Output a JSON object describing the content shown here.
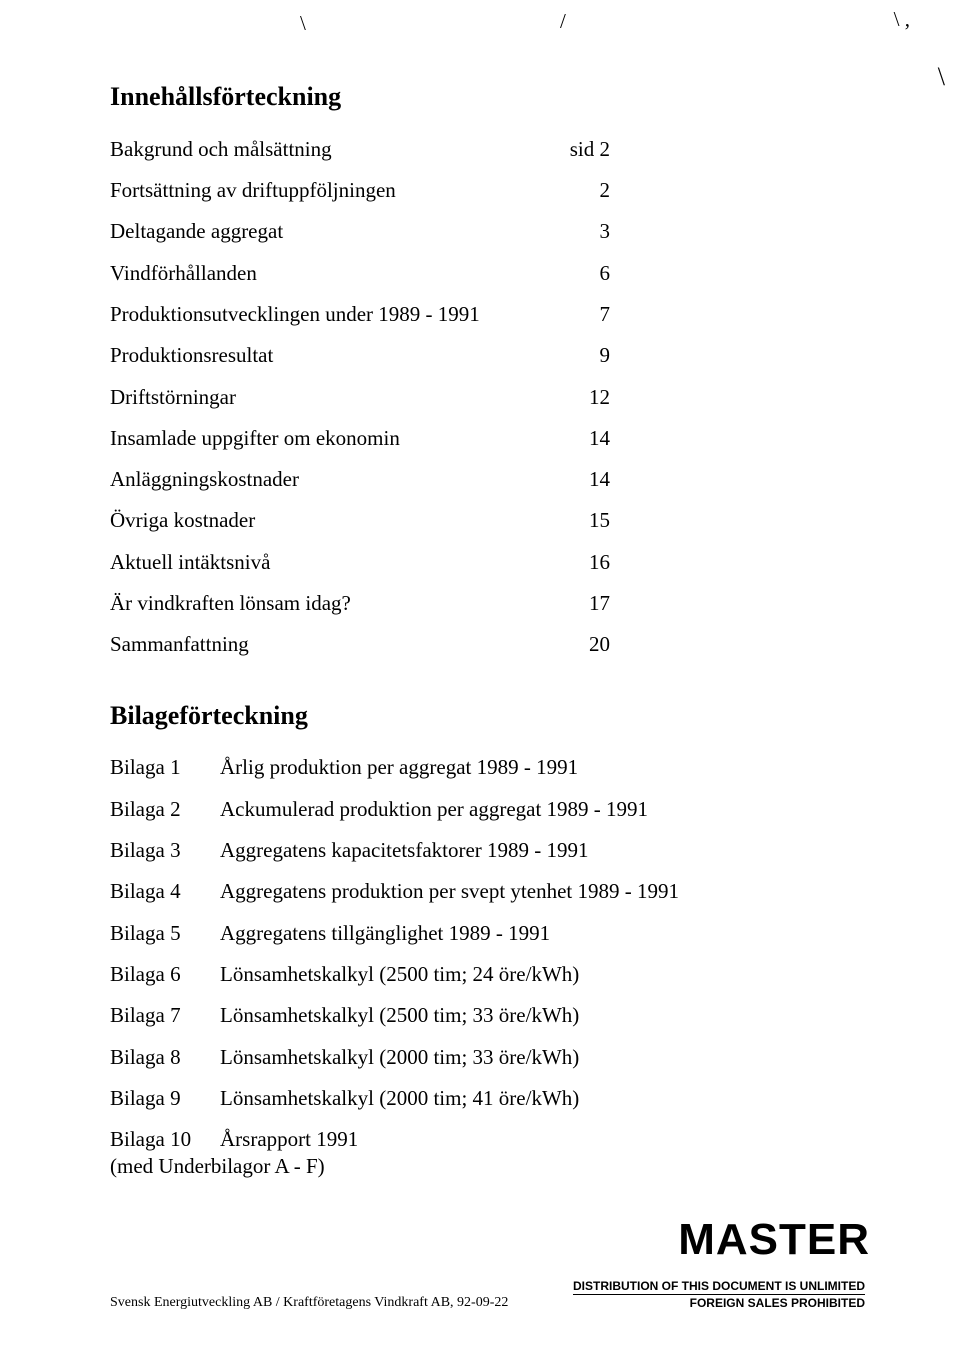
{
  "headings": {
    "toc": "Innehållsförteckning",
    "appendix": "Bilageförteckning"
  },
  "toc": [
    {
      "label": "Bakgrund och målsättning",
      "page": "sid 2"
    },
    {
      "label": "Fortsättning av driftuppföljningen",
      "page": "2"
    },
    {
      "label": "Deltagande aggregat",
      "page": "3"
    },
    {
      "label": "Vindförhållanden",
      "page": "6"
    },
    {
      "label": "Produktionsutvecklingen under 1989 - 1991",
      "page": "7"
    },
    {
      "label": "Produktionsresultat",
      "page": "9"
    },
    {
      "label": "Driftstörningar",
      "page": "12"
    },
    {
      "label": "Insamlade uppgifter om ekonomin",
      "page": "14"
    },
    {
      "label": "Anläggningskostnader",
      "page": "14"
    },
    {
      "label": "Övriga kostnader",
      "page": "15"
    },
    {
      "label": "Aktuell intäktsnivå",
      "page": "16"
    },
    {
      "label": "Är vindkraften lönsam idag?",
      "page": "17"
    },
    {
      "label": "Sammanfattning",
      "page": "20"
    }
  ],
  "appendix": [
    {
      "label": "Bilaga 1",
      "desc": "Årlig produktion per aggregat 1989 - 1991"
    },
    {
      "label": "Bilaga 2",
      "desc": "Ackumulerad produktion per aggregat 1989 - 1991"
    },
    {
      "label": "Bilaga 3",
      "desc": "Aggregatens kapacitetsfaktorer 1989 - 1991"
    },
    {
      "label": "Bilaga 4",
      "desc": "Aggregatens produktion per svept ytenhet 1989 - 1991"
    },
    {
      "label": "Bilaga 5",
      "desc": "Aggregatens tillgänglighet 1989 - 1991"
    },
    {
      "label": "Bilaga 6",
      "desc": "Lönsamhetskalkyl (2500 tim; 24 öre/kWh)"
    },
    {
      "label": "Bilaga 7",
      "desc": "Lönsamhetskalkyl (2500 tim; 33 öre/kWh)"
    },
    {
      "label": "Bilaga 8",
      "desc": "Lönsamhetskalkyl (2000 tim; 33 öre/kWh)"
    },
    {
      "label": "Bilaga 9",
      "desc": "Lönsamhetskalkyl (2000 tim; 41 öre/kWh)"
    },
    {
      "label": "Bilaga 10",
      "desc": "Årsrapport 1991"
    }
  ],
  "appendix_note": "(med Underbilagor A - F)",
  "master": "MASTER",
  "footer_left": "Svensk Energiutveckling AB / Kraftföretagens Vindkraft AB, 92-09-22",
  "footer_stamp1": "DISTRIBUTION OF THIS DOCUMENT IS UNLIMITED",
  "footer_stamp2": "FOREIGN SALES PROHIBITED"
}
